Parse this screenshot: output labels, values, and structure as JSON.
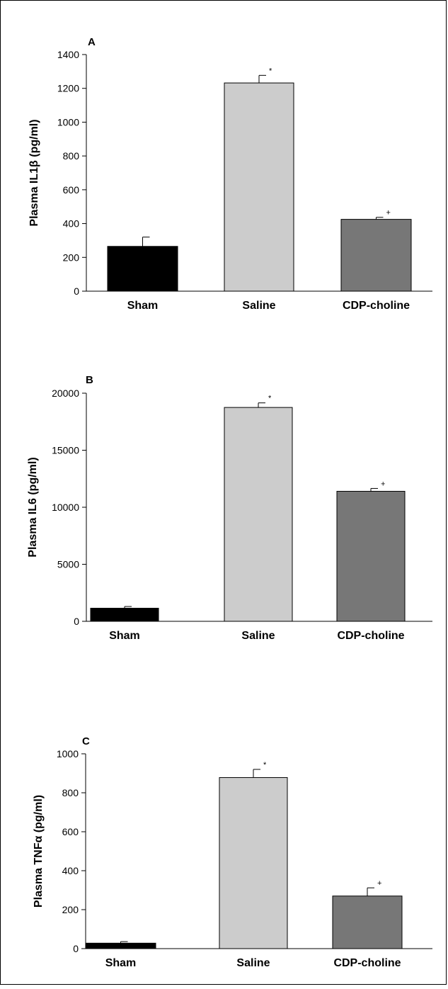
{
  "colors": {
    "Sham": "#000000",
    "Saline": "#cccccc",
    "CDP-choline": "#777777"
  },
  "chart_data": [
    {
      "type": "bar",
      "panel": "A",
      "ylabel": "Plasma IL1β (pg/ml)",
      "categories": [
        "Sham",
        "Saline",
        "CDP-choline"
      ],
      "values": [
        265,
        1232,
        425
      ],
      "errors": [
        55,
        45,
        12
      ],
      "annotations": [
        "",
        "*",
        "+"
      ],
      "ylim": [
        0,
        1400
      ],
      "yticks": [
        0,
        200,
        400,
        600,
        800,
        1000,
        1200,
        1400
      ],
      "ytick_labels": [
        "0",
        "200",
        "400",
        "600",
        "800",
        "1000",
        "1200",
        "1400"
      ],
      "grid": false
    },
    {
      "type": "bar",
      "panel": "B",
      "ylabel": "Plasma IL6 (pg/ml)",
      "categories": [
        "Sham",
        "Saline",
        "CDP-choline"
      ],
      "values": [
        1150,
        18750,
        11400
      ],
      "errors": [
        150,
        400,
        250
      ],
      "annotations": [
        "",
        "*",
        "+"
      ],
      "ylim": [
        0,
        20000
      ],
      "yticks": [
        0,
        5000,
        10000,
        15000,
        20000
      ],
      "ytick_labels": [
        "0",
        "5000",
        "10000",
        "15000",
        "20000"
      ],
      "grid": false
    },
    {
      "type": "bar",
      "panel": "C",
      "ylabel": "Plasma TNFα (pg/ml)",
      "categories": [
        "Sham",
        "Saline",
        "CDP-choline"
      ],
      "values": [
        28,
        878,
        270
      ],
      "errors": [
        8,
        42,
        42
      ],
      "annotations": [
        "",
        "*",
        "+"
      ],
      "ylim": [
        0,
        1000
      ],
      "yticks": [
        0,
        200,
        400,
        600,
        800,
        1000
      ],
      "ytick_labels": [
        "0",
        "200",
        "400",
        "600",
        "800",
        "1000"
      ],
      "grid": false
    }
  ]
}
